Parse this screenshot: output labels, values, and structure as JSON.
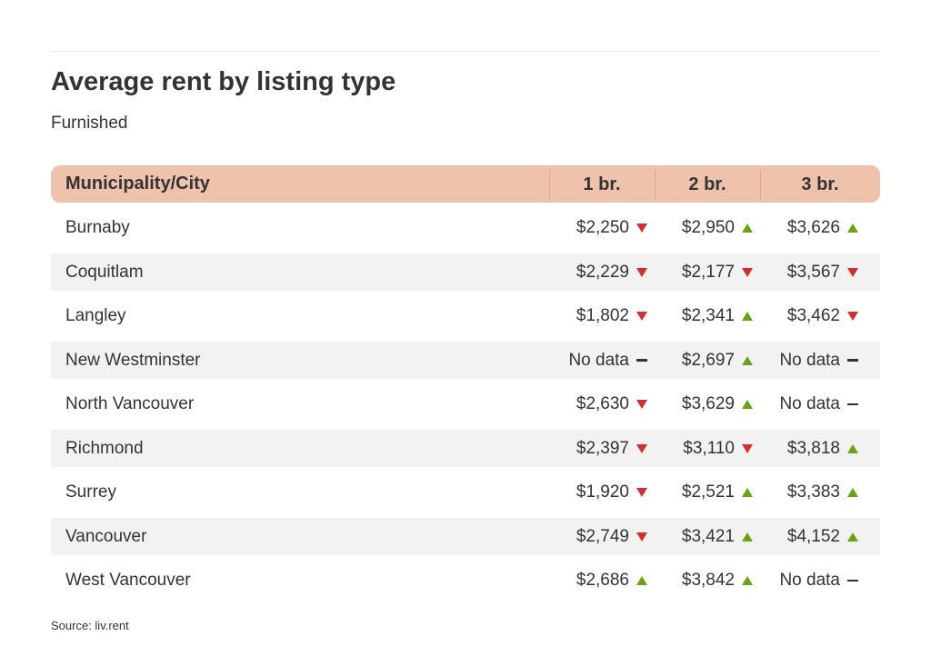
{
  "chart_data": {
    "type": "table",
    "title": "Average rent by listing type",
    "subtitle": "Furnished",
    "columns": [
      "Municipality/City",
      "1 br.",
      "2 br.",
      "3 br."
    ],
    "rows": [
      {
        "city": "Burnaby",
        "cells": [
          {
            "value": "$2,250",
            "trend": "down"
          },
          {
            "value": "$2,950",
            "trend": "up"
          },
          {
            "value": "$3,626",
            "trend": "up"
          }
        ]
      },
      {
        "city": "Coquitlam",
        "cells": [
          {
            "value": "$2,229",
            "trend": "down"
          },
          {
            "value": "$2,177",
            "trend": "down"
          },
          {
            "value": "$3,567",
            "trend": "down"
          }
        ]
      },
      {
        "city": "Langley",
        "cells": [
          {
            "value": "$1,802",
            "trend": "down"
          },
          {
            "value": "$2,341",
            "trend": "up"
          },
          {
            "value": "$3,462",
            "trend": "down"
          }
        ]
      },
      {
        "city": "New Westminster",
        "cells": [
          {
            "value": "No data",
            "trend": "none"
          },
          {
            "value": "$2,697",
            "trend": "up"
          },
          {
            "value": "No data",
            "trend": "none"
          }
        ]
      },
      {
        "city": "North Vancouver",
        "cells": [
          {
            "value": "$2,630",
            "trend": "down"
          },
          {
            "value": "$3,629",
            "trend": "up"
          },
          {
            "value": "No data",
            "trend": "none"
          }
        ]
      },
      {
        "city": "Richmond",
        "cells": [
          {
            "value": "$2,397",
            "trend": "down"
          },
          {
            "value": "$3,110",
            "trend": "down"
          },
          {
            "value": "$3,818",
            "trend": "up"
          }
        ]
      },
      {
        "city": "Surrey",
        "cells": [
          {
            "value": "$1,920",
            "trend": "down"
          },
          {
            "value": "$2,521",
            "trend": "up"
          },
          {
            "value": "$3,383",
            "trend": "up"
          }
        ]
      },
      {
        "city": "Vancouver",
        "cells": [
          {
            "value": "$2,749",
            "trend": "down"
          },
          {
            "value": "$3,421",
            "trend": "up"
          },
          {
            "value": "$4,152",
            "trend": "up"
          }
        ]
      },
      {
        "city": "West Vancouver",
        "cells": [
          {
            "value": "$2,686",
            "trend": "up"
          },
          {
            "value": "$3,842",
            "trend": "up"
          },
          {
            "value": "No data",
            "trend": "none"
          }
        ]
      }
    ],
    "source": "Source: liv.rent",
    "colors": {
      "header_bg": "#efc3ab",
      "up": "#6ba316",
      "down": "#d32f2f",
      "stripe": "#f2f2f2"
    }
  }
}
